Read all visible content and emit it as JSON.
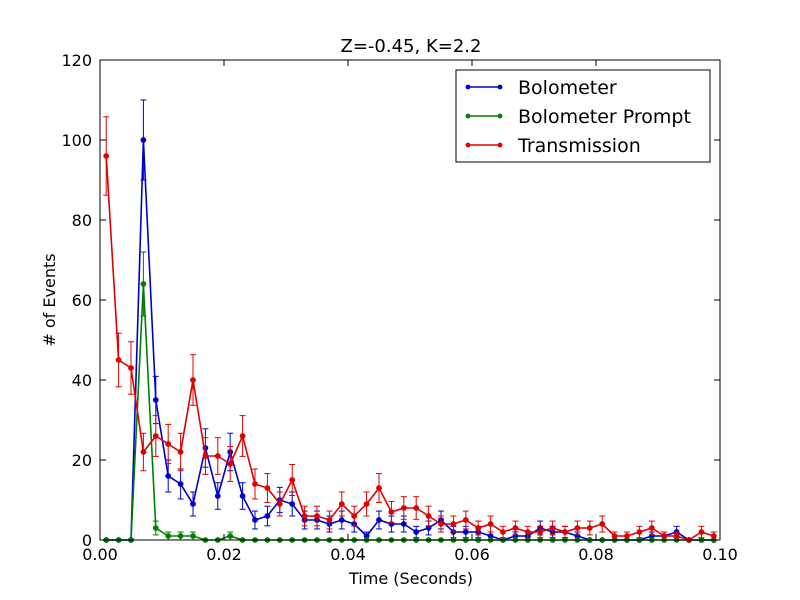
{
  "chart_data": {
    "type": "line",
    "title": "Z=-0.45, K=2.2",
    "xlabel": "Time (Seconds)",
    "ylabel": "# of Events",
    "xlim": [
      0.0,
      0.1
    ],
    "ylim": [
      0,
      120
    ],
    "x_ticks": [
      "0.00",
      "0.02",
      "0.04",
      "0.06",
      "0.08",
      "0.10"
    ],
    "y_ticks": [
      "0",
      "20",
      "40",
      "60",
      "80",
      "100",
      "120"
    ],
    "grid": false,
    "legend_position": "top-right",
    "error_bars": "sqrt(N)",
    "x": [
      0.001,
      0.003,
      0.005,
      0.007,
      0.009,
      0.011,
      0.013,
      0.015,
      0.017,
      0.019,
      0.021,
      0.023,
      0.025,
      0.027,
      0.029,
      0.031,
      0.033,
      0.035,
      0.037,
      0.039,
      0.041,
      0.043,
      0.045,
      0.047,
      0.049,
      0.051,
      0.053,
      0.055,
      0.057,
      0.059,
      0.061,
      0.063,
      0.065,
      0.067,
      0.069,
      0.071,
      0.073,
      0.075,
      0.077,
      0.079,
      0.081,
      0.083,
      0.085,
      0.087,
      0.089,
      0.091,
      0.093,
      0.095,
      0.097,
      0.099
    ],
    "series": [
      {
        "name": "Bolometer",
        "color": "#0000cc",
        "values": [
          0,
          0,
          0,
          100,
          35,
          16,
          14,
          9,
          23,
          11,
          22,
          11,
          5,
          6,
          10,
          9,
          5,
          5,
          4,
          5,
          4,
          1,
          5,
          4,
          4,
          2,
          3,
          5,
          2,
          2,
          2,
          1,
          0,
          1,
          1,
          3,
          2,
          2,
          1,
          0,
          0,
          0,
          0,
          0,
          1,
          1,
          2,
          0,
          0,
          0
        ]
      },
      {
        "name": "Bolometer Prompt",
        "color": "#008000",
        "values": [
          0,
          0,
          0,
          64,
          3,
          1,
          1,
          1,
          0,
          0,
          1,
          0,
          0,
          0,
          0,
          0,
          0,
          0,
          0,
          0,
          0,
          0,
          0,
          0,
          0,
          0,
          0,
          0,
          0,
          0,
          0,
          0,
          0,
          0,
          0,
          0,
          0,
          0,
          0,
          0,
          0,
          0,
          0,
          0,
          0,
          0,
          0,
          0,
          0,
          0
        ]
      },
      {
        "name": "Transmission",
        "color": "#e00000",
        "values": [
          96,
          45,
          43,
          22,
          26,
          24,
          22,
          40,
          21,
          21,
          19,
          26,
          14,
          13,
          9,
          15,
          6,
          6,
          5,
          9,
          6,
          9,
          13,
          7,
          8,
          8,
          6,
          4,
          4,
          5,
          3,
          4,
          2,
          3,
          2,
          2,
          3,
          2,
          3,
          3,
          4,
          1,
          1,
          2,
          3,
          1,
          1,
          0,
          2,
          1
        ]
      }
    ]
  }
}
